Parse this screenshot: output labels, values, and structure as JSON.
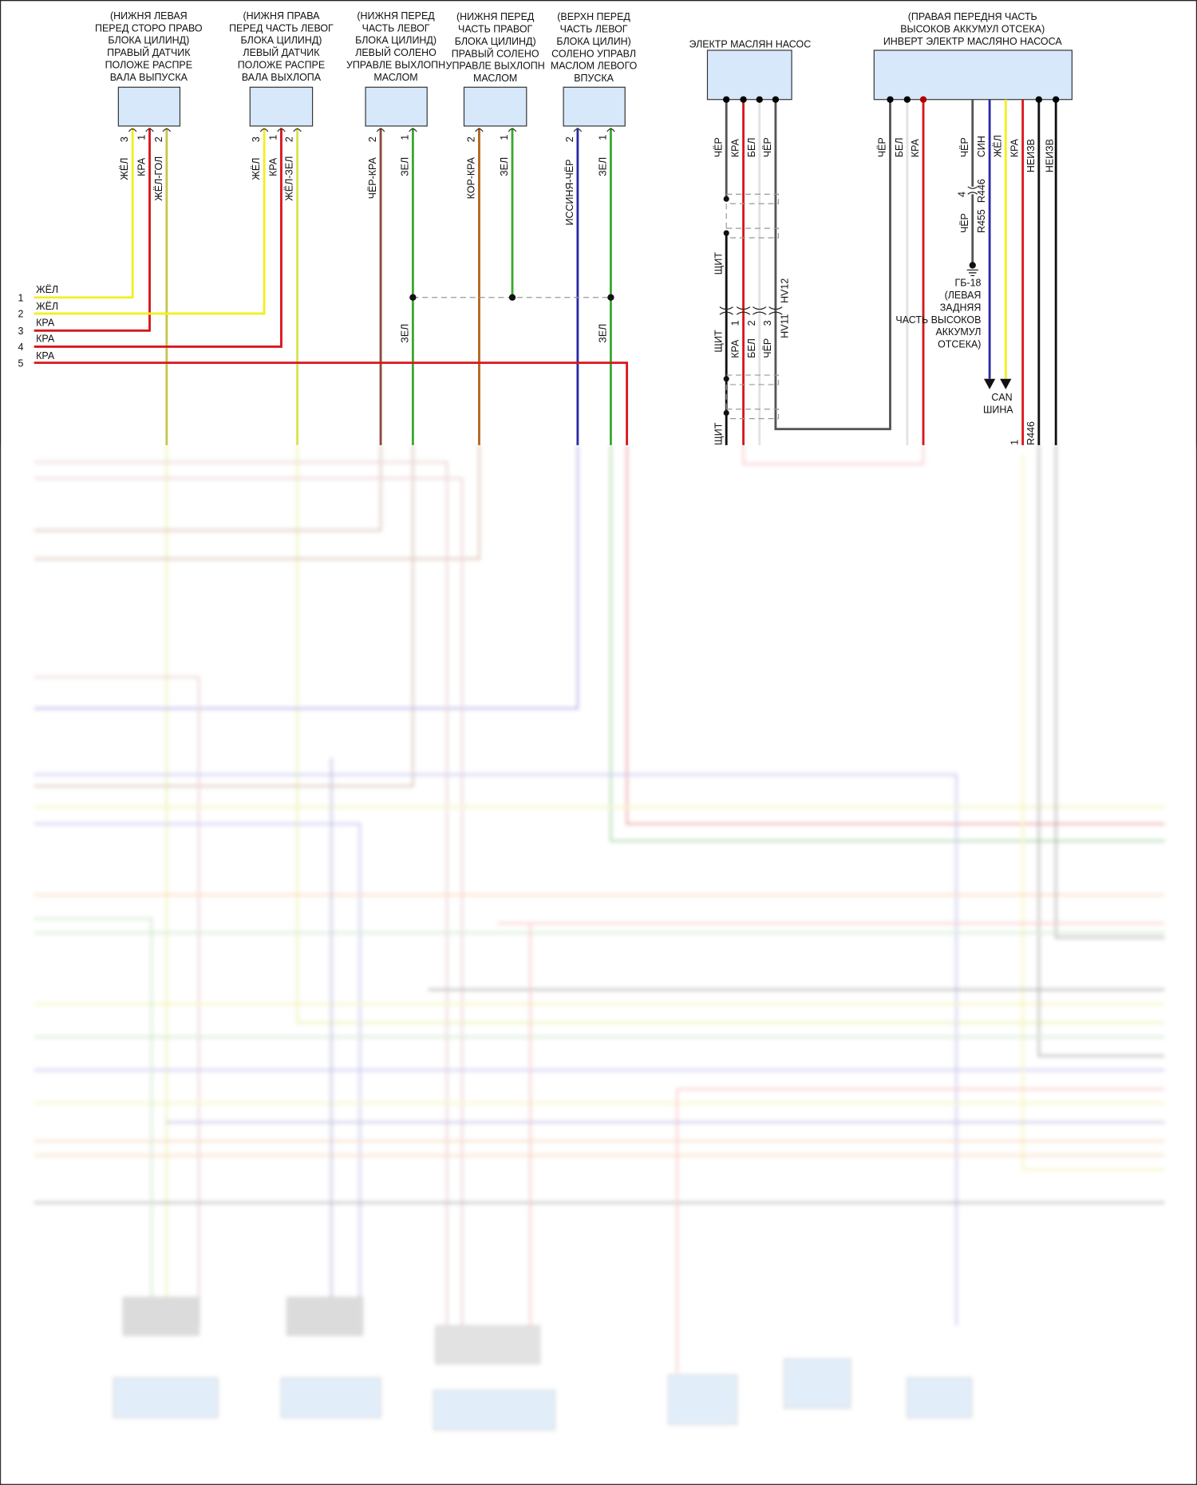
{
  "colors": {
    "yellow": "#f4ee22",
    "red": "#d9161c",
    "olive": "#c8c44a",
    "yelgreen": "#d7e44a",
    "brown": "#8a4a3a",
    "orange_brown": "#b5651d",
    "green": "#3aa832",
    "blue": "#2a2aa8",
    "gray": "#555555",
    "white": "#e6e6e6",
    "black": "#111111",
    "box_fill": "#d6e8fa"
  },
  "components": [
    {
      "label_lines": [
        "(НИЖНЯ ЛЕВАЯ",
        "ПЕРЕД СТОРО ПРАВО",
        "БЛОКА ЦИЛИНД)",
        "ПРАВЫЙ ДАТЧИК",
        "ПОЛОЖЕ РАСПРЕ",
        "ВАЛА ВЫПУСКА"
      ],
      "pins": [
        {
          "num": "3",
          "wire": "ЖЁЛ"
        },
        {
          "num": "1",
          "wire": "КРА"
        },
        {
          "num": "2",
          "wire": "ЖЁЛ-ГОЛ"
        }
      ]
    },
    {
      "label_lines": [
        "(НИЖНЯ ПРАВА",
        "ПЕРЕД ЧАСТЬ ЛЕВОГ",
        "БЛОКА ЦИЛИНД)",
        "ЛЕВЫЙ ДАТЧИК",
        "ПОЛОЖЕ РАСПРЕ",
        "ВАЛА ВЫХЛОПА"
      ],
      "pins": [
        {
          "num": "3",
          "wire": "ЖЁЛ"
        },
        {
          "num": "1",
          "wire": "КРА"
        },
        {
          "num": "2",
          "wire": "ЖЁЛ-ЗЕЛ"
        }
      ]
    },
    {
      "label_lines": [
        "(НИЖНЯ ПЕРЕД",
        "ЧАСТЬ ЛЕВОГ",
        "БЛОКА ЦИЛИНД)",
        "ЛЕВЫЙ СОЛЕНО",
        "УПРАВЛЕ ВЫХЛОПН",
        "МАСЛОМ"
      ],
      "pins": [
        {
          "num": "2",
          "wire": "ЧЁР-КРА"
        },
        {
          "num": "1",
          "wire": "ЗЕЛ"
        }
      ]
    },
    {
      "label_lines": [
        "(НИЖНЯ ПЕРЕД",
        "ЧАСТЬ ПРАВОГ",
        "БЛОКА ЦИЛИНД)",
        "ПРАВЫЙ СОЛЕНО",
        "УПРАВЛЕ ВЫХЛОПН",
        "МАСЛОМ"
      ],
      "pins": [
        {
          "num": "2",
          "wire": "КОР-КРА"
        },
        {
          "num": "1",
          "wire": "ЗЕЛ"
        }
      ]
    },
    {
      "label_lines": [
        "(ВЕРХН ПЕРЕД",
        "ЧАСТЬ ЛЕВОГ",
        "БЛОКА ЦИЛИН)",
        "СОЛЕНО УПРАВЛ",
        "МАСЛОМ ЛЕВОГО",
        "ВПУСКА"
      ],
      "pins": [
        {
          "num": "2",
          "wire": "ИССИНЯ-ЧЁР"
        },
        {
          "num": "1",
          "wire": "ЗЕЛ"
        }
      ]
    }
  ],
  "left_wires": [
    {
      "num": "1",
      "label": "ЖЁЛ"
    },
    {
      "num": "2",
      "label": "ЖЁЛ"
    },
    {
      "num": "3",
      "label": "КРА"
    },
    {
      "num": "4",
      "label": "КРА"
    },
    {
      "num": "5",
      "label": "КРА"
    }
  ],
  "splice_labels": [
    "ЗЕЛ",
    "ЗЕЛ"
  ],
  "oil_pump": {
    "label": "ЭЛЕКТР МАСЛЯН НАСОС",
    "wires": [
      "ЧЁР",
      "КРА",
      "БЕЛ",
      "ЧЁР"
    ],
    "shield": "ЩИТ",
    "connector_top": "HV12",
    "connector_bottom": "HV11",
    "connector_pins": [
      "1",
      "2",
      "3"
    ],
    "lower_wires": [
      "КРА",
      "БЕЛ",
      "ЧЁР"
    ]
  },
  "inverter": {
    "label_lines": [
      "(ПРАВАЯ ПЕРЕДНЯ ЧАСТЬ",
      "ВЫСОКОВ АККУМУЛ ОТСЕКА)",
      "ИНВЕРТ ЭЛЕКТР МАСЛЯНО НАСОСА"
    ],
    "wires": [
      "ЧЁР",
      "БЕЛ",
      "КРА",
      "ЧЁР",
      "СИН",
      "ЖЁЛ",
      "КРА",
      "НЕИЗВ",
      "НЕИЗВ"
    ],
    "r446": "R446",
    "r455": "R455",
    "pin4": "4",
    "pin1": "1",
    "lower_wire": "ЧЁР",
    "ground_lines": [
      "ГБ-18",
      "(ЛЕВАЯ",
      "ЗАДНЯЯ",
      "ЧАСТЬ ВЫСОКОВ",
      "АККУМУЛ",
      "ОТСЕКА)"
    ],
    "can_lines": [
      "CAN",
      "ШИНА"
    ]
  }
}
